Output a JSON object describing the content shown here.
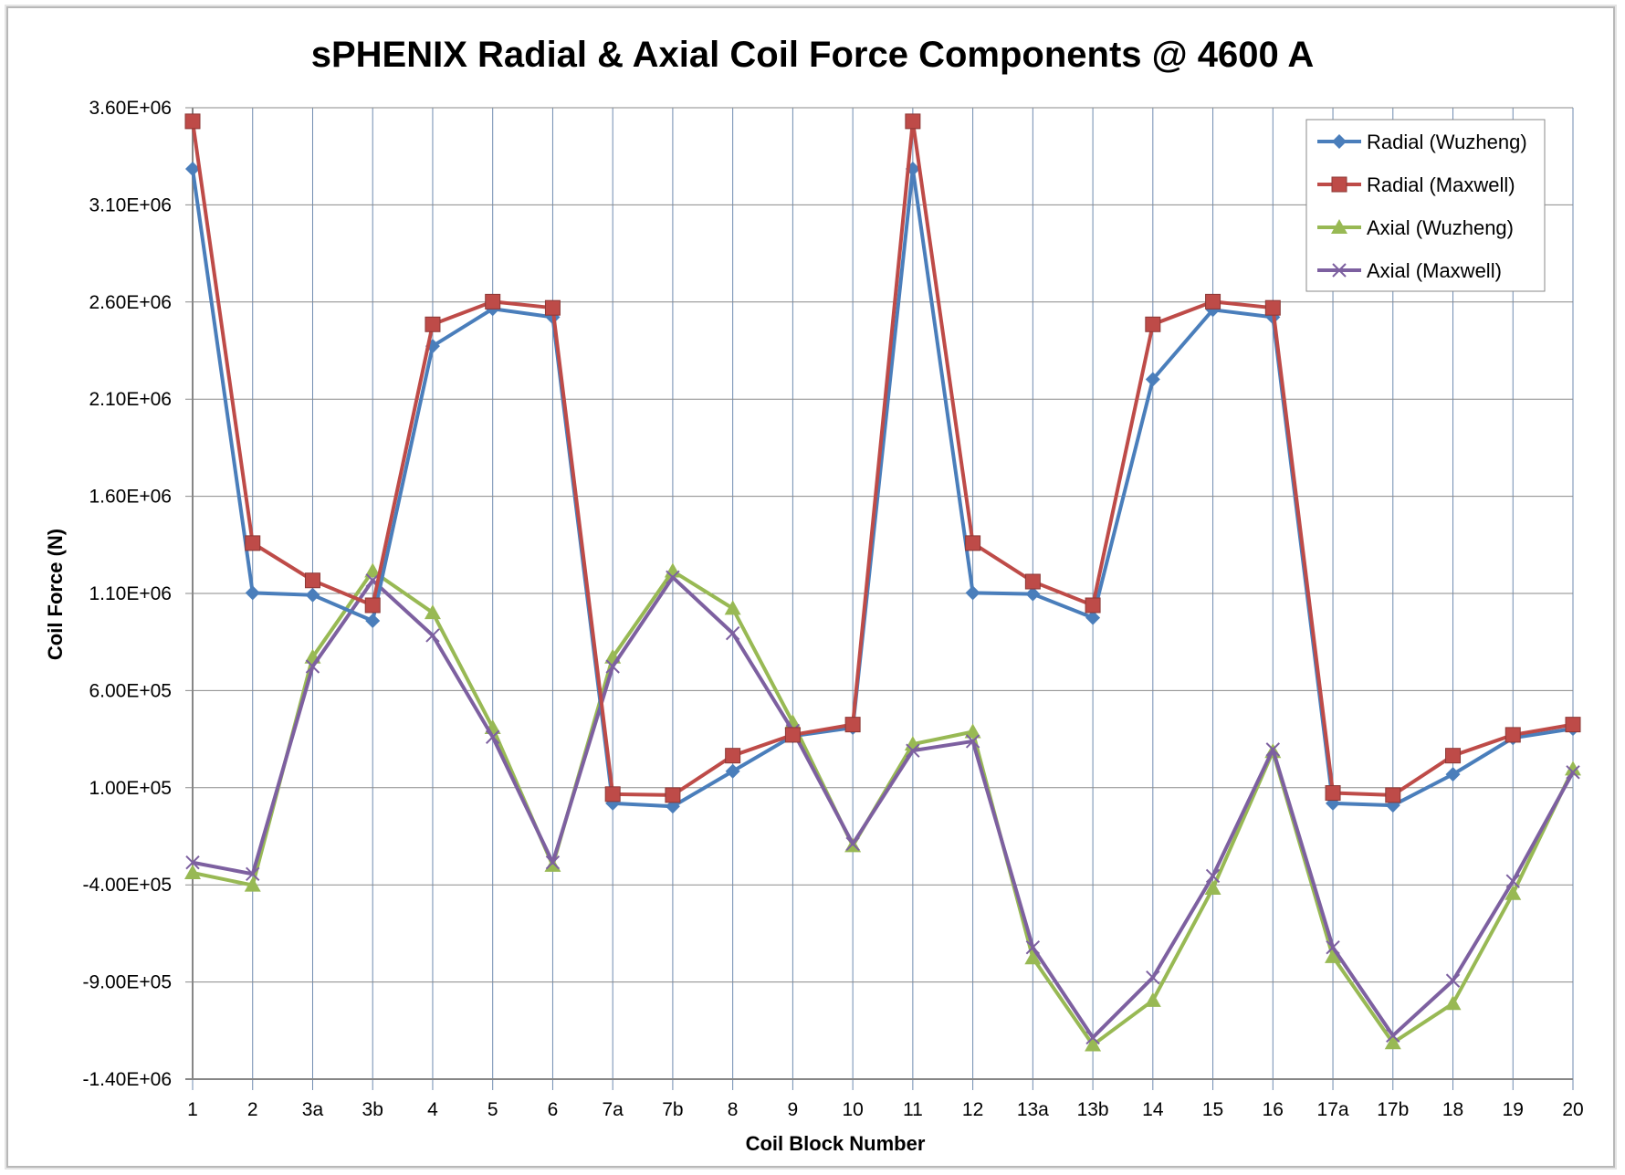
{
  "chart_data": {
    "type": "line",
    "title": "sPHENIX Radial & Axial Coil Force Components @ 4600 A",
    "xlabel": "Coil Block Number",
    "ylabel": "Coil Force (N)",
    "ylim": [
      -1400000,
      3600000
    ],
    "yticks": [
      3600000,
      3100000,
      2600000,
      2100000,
      1600000,
      1100000,
      600000,
      100000,
      -400000,
      -900000,
      -1400000
    ],
    "ytick_labels": [
      "3.60E+06",
      "3.10E+06",
      "2.60E+06",
      "2.10E+06",
      "1.60E+06",
      "1.10E+06",
      "6.00E+05",
      "1.00E+05",
      "-4.00E+05",
      "-9.00E+05",
      "-1.40E+06"
    ],
    "grid": "vertical and horizontal",
    "legend_position": "top-right",
    "categories": [
      "1",
      "2",
      "3a",
      "3b",
      "4",
      "5",
      "6",
      "7a",
      "7b",
      "8",
      "9",
      "10",
      "11",
      "12",
      "13a",
      "13b",
      "14",
      "15",
      "16",
      "17a",
      "17b",
      "18",
      "19",
      "20"
    ],
    "series": [
      {
        "name": "Radial (Wuzheng)",
        "color": "#4a7ebb",
        "marker": "diamond",
        "values": [
          3285000,
          1103000,
          1092000,
          959000,
          2373000,
          2565000,
          2522000,
          20000,
          4000,
          185000,
          366000,
          409000,
          3285000,
          1103000,
          1097000,
          975000,
          2202000,
          2560000,
          2522000,
          20000,
          9000,
          169000,
          356000,
          404000
        ]
      },
      {
        "name": "Radial (Maxwell)",
        "color": "#be4b48",
        "marker": "square",
        "values": [
          3530000,
          1359000,
          1167000,
          1039000,
          2485000,
          2602000,
          2570000,
          67000,
          62000,
          265000,
          372000,
          425000,
          3530000,
          1359000,
          1161000,
          1039000,
          2485000,
          2602000,
          2570000,
          73000,
          62000,
          265000,
          372000,
          425000
        ]
      },
      {
        "name": "Axial (Wuzheng)",
        "color": "#98b954",
        "marker": "triangle",
        "values": [
          -338000,
          -402000,
          772000,
          1215000,
          1001000,
          409000,
          -300000,
          772000,
          1215000,
          1023000,
          436000,
          -199000,
          324000,
          388000,
          -776000,
          -1224000,
          -995000,
          -418000,
          286000,
          -770000,
          -1213000,
          -1011000,
          -445000,
          196000
        ]
      },
      {
        "name": "Axial (Maxwell)",
        "color": "#7d60a0",
        "marker": "x",
        "values": [
          -285000,
          -344000,
          724000,
          1167000,
          884000,
          361000,
          -285000,
          724000,
          1183000,
          895000,
          393000,
          -189000,
          291000,
          339000,
          -722000,
          -1186000,
          -877000,
          -354000,
          297000,
          -722000,
          -1176000,
          -893000,
          -381000,
          180000
        ]
      }
    ]
  }
}
